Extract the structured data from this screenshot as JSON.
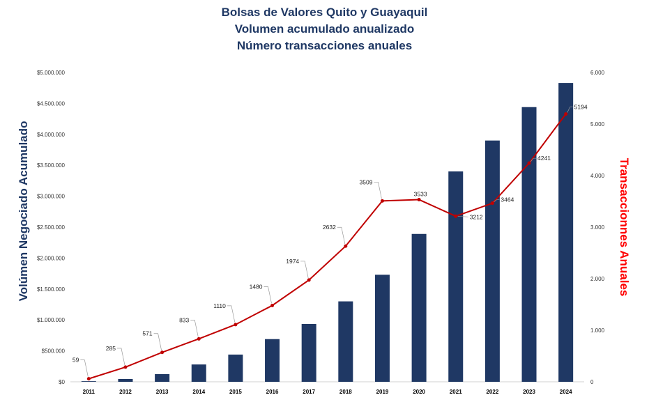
{
  "chart_data": {
    "type": "bar+line",
    "title": [
      "Bolsas de Valores Quito y Guayaquil",
      "Volumen acumulado anualizado",
      "Número transacciones anuales"
    ],
    "ylabel_left": "Volúmen Negociado Acumulado",
    "ylabel_right": "Transaccionnes Anuales",
    "categories": [
      "2011",
      "2012",
      "2013",
      "2014",
      "2015",
      "2016",
      "2017",
      "2018",
      "2019",
      "2020",
      "2021",
      "2022",
      "2023",
      "2024"
    ],
    "series": [
      {
        "name": "Volumen negociado acumulado",
        "type": "bar",
        "axis": "left",
        "color": "#1f3864",
        "values": [
          10000,
          45000,
          125000,
          280000,
          440000,
          690000,
          935000,
          1300000,
          1730000,
          2390000,
          3400000,
          3900000,
          4440000,
          4830000
        ]
      },
      {
        "name": "Transacciones anuales",
        "type": "line",
        "axis": "right",
        "color": "#c00000",
        "values": [
          59,
          285,
          571,
          833,
          1110,
          1480,
          1974,
          2632,
          3509,
          3533,
          3212,
          3464,
          4241,
          5194
        ]
      }
    ],
    "left_axis": {
      "range": [
        0,
        5000000
      ],
      "ticks": [
        "$0",
        "$500.000",
        "$1.000.000",
        "$1.500.000",
        "$2.000.000",
        "$2.500.000",
        "$3.000.000",
        "$3.500.000",
        "$4.000.000",
        "$4.500.000",
        "$5.000.000"
      ]
    },
    "right_axis": {
      "range": [
        0,
        6000
      ],
      "ticks": [
        "0",
        "1.000",
        "2.000",
        "3.000",
        "4.000",
        "5.000",
        "6.000"
      ]
    },
    "data_labels": [
      "59",
      "285",
      "571",
      "833",
      "1110",
      "1480",
      "1974",
      "2632",
      "3509",
      "3533",
      "3212",
      "3464",
      "4241",
      "5194"
    ]
  }
}
